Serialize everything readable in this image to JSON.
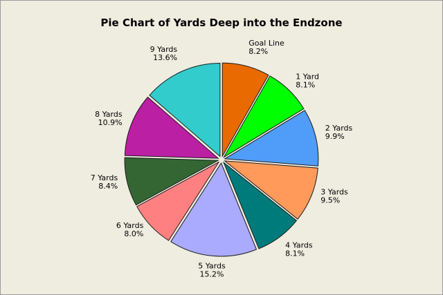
{
  "chart_data": {
    "type": "pie",
    "title": "Pie Chart of Yards Deep into the Endzone",
    "start_angle_deg": 0,
    "direction": "clockwise",
    "exploded": true,
    "slices": [
      {
        "category": "Goal Line",
        "percent_label": "8.2%",
        "value": 8.2,
        "color": "#e96a00"
      },
      {
        "category": "1 Yard",
        "percent_label": "8.1%",
        "value": 8.1,
        "color": "#00ff00"
      },
      {
        "category": "2 Yards",
        "percent_label": "9.9%",
        "value": 9.9,
        "color": "#4f9cf9"
      },
      {
        "category": "3 Yards",
        "percent_label": "9.5%",
        "value": 9.5,
        "color": "#ff9a5a"
      },
      {
        "category": "4 Yards",
        "percent_label": "8.1%",
        "value": 8.1,
        "color": "#007b7b"
      },
      {
        "category": "5 Yards",
        "percent_label": "15.2%",
        "value": 15.2,
        "color": "#aaaaff"
      },
      {
        "category": "6 Yards",
        "percent_label": "8.0%",
        "value": 8.0,
        "color": "#ff8080"
      },
      {
        "category": "7 Yards",
        "percent_label": "8.4%",
        "value": 8.4,
        "color": "#336633"
      },
      {
        "category": "8 Yards",
        "percent_label": "10.9%",
        "value": 10.9,
        "color": "#bb1fa3"
      },
      {
        "category": "9 Yards",
        "percent_label": "13.6%",
        "value": 13.6,
        "color": "#33cccc"
      }
    ]
  }
}
